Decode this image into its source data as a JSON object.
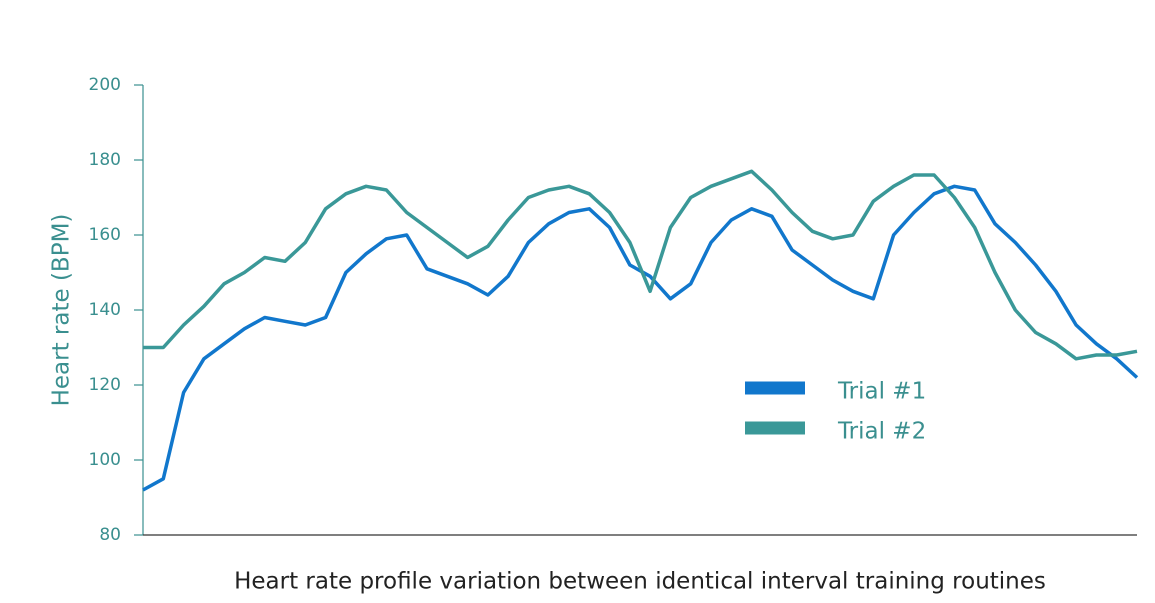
{
  "chart_data": {
    "type": "line",
    "title": "Heart rate profile variation between identical interval training routines",
    "y_label": "Heart rate (BPM)",
    "categories": [
      null,
      null,
      null,
      null,
      null,
      null,
      null,
      null,
      null,
      null,
      null,
      null,
      null,
      null,
      null,
      null,
      null,
      null,
      null,
      null,
      null,
      null,
      null,
      null,
      null,
      null,
      null,
      null,
      null,
      null,
      null,
      null,
      null,
      null,
      null,
      null,
      null,
      null,
      null,
      null,
      null,
      null,
      null,
      null,
      null,
      null,
      null,
      null,
      null,
      null
    ],
    "series": [
      {
        "name": "Trial #1",
        "color": "#1177cc",
        "values": [
          92,
          95,
          118,
          127,
          131,
          135,
          138,
          137,
          136,
          138,
          150,
          155,
          159,
          160,
          151,
          149,
          147,
          144,
          149,
          158,
          163,
          166,
          167,
          162,
          152,
          149,
          143,
          147,
          158,
          164,
          167,
          165,
          156,
          152,
          148,
          145,
          143,
          160,
          166,
          171,
          173,
          172,
          163,
          158,
          152,
          145,
          136,
          131,
          127,
          122
        ]
      },
      {
        "name": "Trial #2",
        "color": "#3a9898",
        "values": [
          130,
          130,
          136,
          141,
          147,
          150,
          154,
          153,
          158,
          167,
          171,
          173,
          172,
          166,
          162,
          158,
          154,
          157,
          164,
          170,
          172,
          173,
          171,
          166,
          158,
          145,
          162,
          170,
          173,
          175,
          177,
          172,
          166,
          161,
          159,
          160,
          169,
          173,
          176,
          176,
          170,
          162,
          150,
          140,
          134,
          131,
          127,
          128,
          128,
          129
        ]
      }
    ],
    "ylim": [
      80,
      200
    ],
    "yticks": [
      80,
      100,
      120,
      140,
      160,
      180,
      200
    ],
    "legend": "right"
  }
}
